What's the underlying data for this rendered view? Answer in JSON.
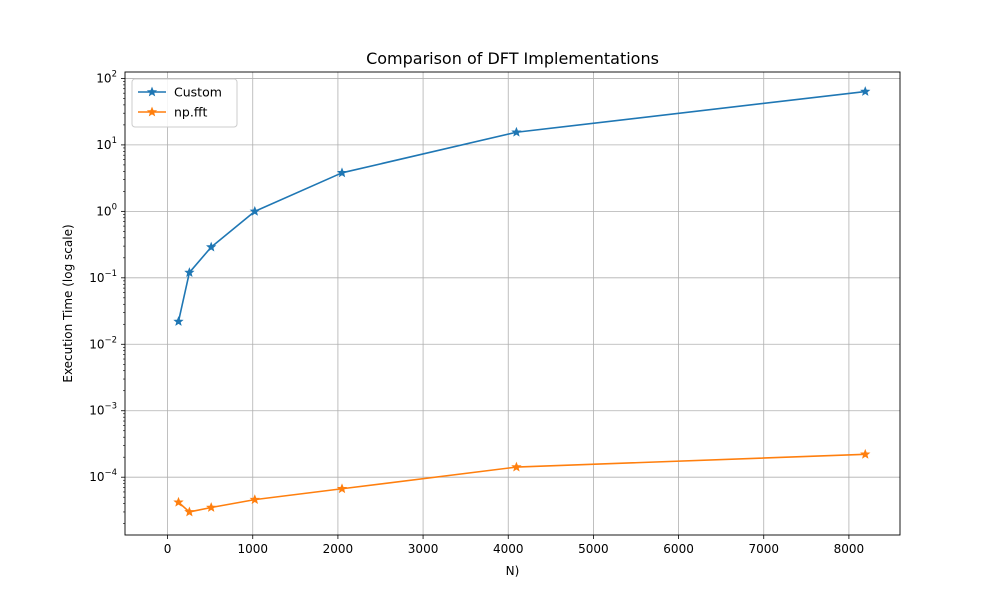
{
  "chart_data": {
    "type": "line",
    "title": "Comparison of DFT Implementations",
    "xlabel": "N)",
    "ylabel": "Execution Time (log scale)",
    "xlim": [
      -500,
      8600
    ],
    "ylim": [
      1.35e-05,
      125
    ],
    "yscale": "log",
    "grid": true,
    "legend_position": "top-left",
    "x_ticks": [
      0,
      1000,
      2000,
      3000,
      4000,
      5000,
      6000,
      7000,
      8000
    ],
    "x_tick_labels": [
      "0",
      "1000",
      "2000",
      "3000",
      "4000",
      "5000",
      "6000",
      "7000",
      "8000"
    ],
    "y_ticks": [
      {
        "value": 0.0001,
        "base": "10",
        "exp": "−4"
      },
      {
        "value": 0.001,
        "base": "10",
        "exp": "−3"
      },
      {
        "value": 0.01,
        "base": "10",
        "exp": "−2"
      },
      {
        "value": 0.1,
        "base": "10",
        "exp": "−1"
      },
      {
        "value": 1,
        "base": "10",
        "exp": "0"
      },
      {
        "value": 10,
        "base": "10",
        "exp": "1"
      },
      {
        "value": 100,
        "base": "10",
        "exp": "2"
      }
    ],
    "series": [
      {
        "name": "Custom",
        "color": "#1f77b4",
        "marker": "star",
        "x": [
          128,
          256,
          512,
          1024,
          2048,
          4096,
          8192
        ],
        "y": [
          0.022,
          0.12,
          0.29,
          1.0,
          3.8,
          15.5,
          63.5
        ]
      },
      {
        "name": "np.fft",
        "color": "#ff7f0e",
        "marker": "star",
        "x": [
          128,
          256,
          512,
          1024,
          2048,
          4096,
          8192
        ],
        "y": [
          4.2e-05,
          3e-05,
          3.5e-05,
          4.6e-05,
          6.7e-05,
          0.000142,
          0.000221
        ]
      }
    ]
  }
}
